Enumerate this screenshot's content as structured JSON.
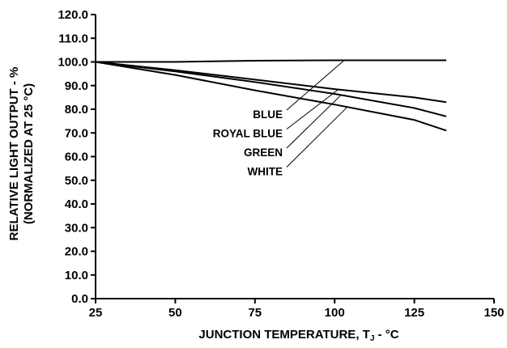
{
  "chart_data": {
    "type": "line",
    "title": "",
    "xlabel": "JUNCTION TEMPERATURE, T",
    "xlabel_sub": "J",
    "xlabel_suffix": " - °C",
    "ylabel_line1": "RELATIVE LIGHT OUTPUT - %",
    "ylabel_line2": "(NORMALIZED AT 25 °C)",
    "xlim": [
      25,
      150
    ],
    "ylim": [
      0,
      120
    ],
    "xticks": [
      25,
      50,
      75,
      100,
      125,
      150
    ],
    "xtick_labels": [
      "25",
      "50",
      "75",
      "100",
      "125",
      "150"
    ],
    "yticks": [
      0,
      10,
      20,
      30,
      40,
      50,
      60,
      70,
      80,
      90,
      100,
      110,
      120
    ],
    "ytick_labels": [
      "0.0",
      "10.0",
      "20.0",
      "30.0",
      "40.0",
      "50.0",
      "60.0",
      "70.0",
      "80.0",
      "90.0",
      "100.0",
      "110.0",
      "120.0"
    ],
    "grid": false,
    "series": [
      {
        "name": "BLUE",
        "x": [
          25,
          50,
          75,
          100,
          125,
          135
        ],
        "y": [
          100,
          100,
          100.5,
          100.7,
          100.7,
          100.7
        ],
        "label_anchor": [
          103,
          100.7
        ]
      },
      {
        "name": "ROYAL BLUE",
        "x": [
          25,
          50,
          75,
          100,
          125,
          135
        ],
        "y": [
          100,
          96.5,
          92.5,
          88.5,
          85,
          83
        ],
        "label_anchor": [
          101,
          88.2
        ]
      },
      {
        "name": "GREEN",
        "x": [
          25,
          50,
          75,
          100,
          125,
          135
        ],
        "y": [
          100,
          96,
          91.5,
          86.5,
          80.5,
          77
        ],
        "label_anchor": [
          102,
          86
        ]
      },
      {
        "name": "WHITE",
        "x": [
          25,
          50,
          75,
          100,
          125,
          135
        ],
        "y": [
          100,
          94.5,
          88,
          82,
          75.5,
          71
        ],
        "label_anchor": [
          104,
          81
        ]
      }
    ]
  }
}
